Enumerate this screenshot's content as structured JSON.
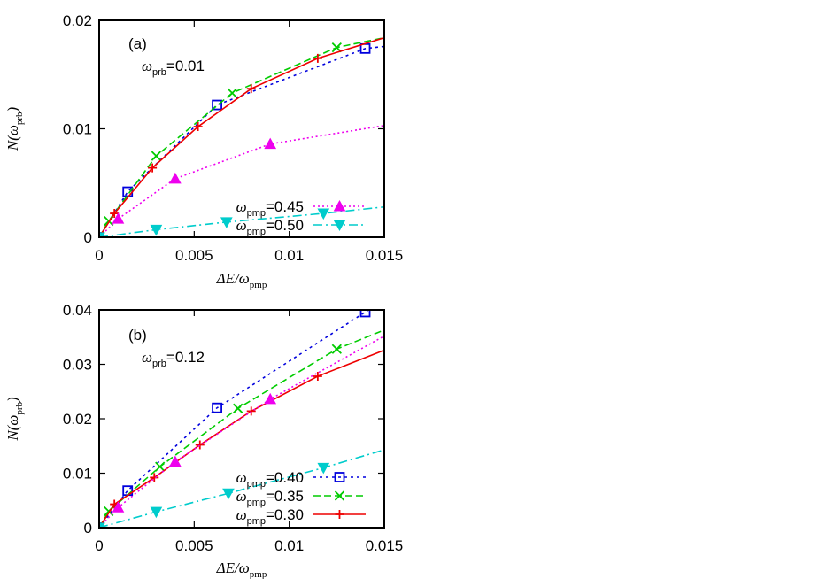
{
  "chart_data": [
    {
      "type": "line",
      "panel": "(a)",
      "annotation": {
        "symbol": "ω",
        "sub": "prb",
        "value": "=0.01"
      },
      "xlabel": {
        "main": "ΔE/ω",
        "sub": "pmp"
      },
      "ylabel": {
        "main": "N(ω",
        "sub": "prb",
        "close": ")"
      },
      "xlim": [
        0,
        0.015
      ],
      "ylim": [
        0,
        0.02
      ],
      "xticks": [
        {
          "v": 0,
          "label": "0"
        },
        {
          "v": 0.005,
          "label": "0.005"
        },
        {
          "v": 0.01,
          "label": "0.01"
        },
        {
          "v": 0.015,
          "label": "0.015"
        }
      ],
      "yticks": [
        {
          "v": 0,
          "label": "0"
        },
        {
          "v": 0.01,
          "label": "0.01"
        },
        {
          "v": 0.02,
          "label": "0.02"
        }
      ],
      "grid": false,
      "legend_position": "bottom-right",
      "series": [
        {
          "name": "ω_pmp=0.40",
          "color": "#0000dd",
          "dash": "3,4",
          "marker": "square",
          "x": [
            0,
            0.0015,
            0.0062,
            0.014,
            0.015
          ],
          "y": [
            0,
            0.0042,
            0.0122,
            0.0174,
            0.0176
          ],
          "show_legend": false
        },
        {
          "name": "ω_pmp=0.35",
          "color": "#00cc00",
          "dash": "8,4",
          "marker": "x",
          "x": [
            0,
            0.0005,
            0.003,
            0.007,
            0.0125,
            0.015
          ],
          "y": [
            0,
            0.0015,
            0.0075,
            0.0133,
            0.0175,
            0.0184
          ],
          "show_legend": false
        },
        {
          "name": "ω_pmp=0.30",
          "color": "#ee0000",
          "dash": "",
          "marker": "plus",
          "x": [
            0,
            0.0008,
            0.0028,
            0.0052,
            0.008,
            0.0115,
            0.015
          ],
          "y": [
            0,
            0.0022,
            0.0064,
            0.0102,
            0.0137,
            0.0165,
            0.0184
          ],
          "show_legend": false
        },
        {
          "name": "ω_pmp=0.45",
          "label_sym": "ω",
          "label_sub": "pmp",
          "label_val": "=0.45",
          "color": "#ee00ee",
          "dash": "2,3",
          "marker": "triangle-up",
          "x": [
            0,
            0.001,
            0.004,
            0.009,
            0.015
          ],
          "y": [
            0,
            0.0017,
            0.0054,
            0.0086,
            0.0103
          ],
          "show_legend": true
        },
        {
          "name": "ω_pmp=0.50",
          "label_sym": "ω",
          "label_sub": "pmp",
          "label_val": "=0.50",
          "color": "#00cccc",
          "dash": "10,4,2,4",
          "marker": "triangle-down",
          "x": [
            0,
            0.003,
            0.0067,
            0.0118,
            0.015
          ],
          "y": [
            0,
            0.0007,
            0.0014,
            0.0022,
            0.0028
          ],
          "show_legend": true
        }
      ]
    },
    {
      "type": "line",
      "panel": "(b)",
      "annotation": {
        "symbol": "ω",
        "sub": "prb",
        "value": "=0.12"
      },
      "xlabel": {
        "main": "ΔE/ω",
        "sub": "pmp"
      },
      "ylabel": {
        "main": "N(ω",
        "sub": "prb",
        "close": ")"
      },
      "xlim": [
        0,
        0.015
      ],
      "ylim": [
        0,
        0.04
      ],
      "xticks": [
        {
          "v": 0,
          "label": "0"
        },
        {
          "v": 0.005,
          "label": "0.005"
        },
        {
          "v": 0.01,
          "label": "0.01"
        },
        {
          "v": 0.015,
          "label": "0.015"
        }
      ],
      "yticks": [
        {
          "v": 0,
          "label": "0"
        },
        {
          "v": 0.01,
          "label": "0.01"
        },
        {
          "v": 0.02,
          "label": "0.02"
        },
        {
          "v": 0.03,
          "label": "0.03"
        },
        {
          "v": 0.04,
          "label": "0.04"
        }
      ],
      "grid": false,
      "legend_position": "bottom-right",
      "series": [
        {
          "name": "ω_pmp=0.40",
          "label_sym": "ω",
          "label_sub": "pmp",
          "label_val": "=0.40",
          "color": "#0000dd",
          "dash": "3,4",
          "marker": "square",
          "x": [
            0,
            0.0015,
            0.0062,
            0.014,
            0.015
          ],
          "y": [
            0,
            0.0068,
            0.022,
            0.0396,
            0.042
          ],
          "show_legend": true
        },
        {
          "name": "ω_pmp=0.35",
          "label_sym": "ω",
          "label_sub": "pmp",
          "label_val": "=0.35",
          "color": "#00cc00",
          "dash": "8,4",
          "marker": "x",
          "x": [
            0,
            0.0005,
            0.0032,
            0.0073,
            0.0125,
            0.015
          ],
          "y": [
            0,
            0.003,
            0.0112,
            0.0219,
            0.0328,
            0.0363
          ],
          "show_legend": true
        },
        {
          "name": "ω_pmp=0.30",
          "label_sym": "ω",
          "label_sub": "pmp",
          "label_val": "=0.30",
          "color": "#ee0000",
          "dash": "",
          "marker": "plus",
          "x": [
            0,
            0.0008,
            0.0029,
            0.0053,
            0.008,
            0.0115,
            0.015
          ],
          "y": [
            0,
            0.0043,
            0.0092,
            0.0152,
            0.0214,
            0.0278,
            0.0326
          ],
          "show_legend": true
        },
        {
          "name": "ω_pmp=0.45",
          "color": "#ee00ee",
          "dash": "2,3",
          "marker": "triangle-up",
          "x": [
            0,
            0.001,
            0.004,
            0.009,
            0.015
          ],
          "y": [
            0,
            0.0037,
            0.0121,
            0.0236,
            0.0352
          ],
          "show_legend": false
        },
        {
          "name": "ω_pmp=0.50",
          "color": "#00cccc",
          "dash": "10,4,2,4",
          "marker": "triangle-down",
          "x": [
            0,
            0.003,
            0.0068,
            0.0118,
            0.015
          ],
          "y": [
            0,
            0.0029,
            0.0063,
            0.011,
            0.0143
          ],
          "show_legend": false
        }
      ]
    }
  ]
}
